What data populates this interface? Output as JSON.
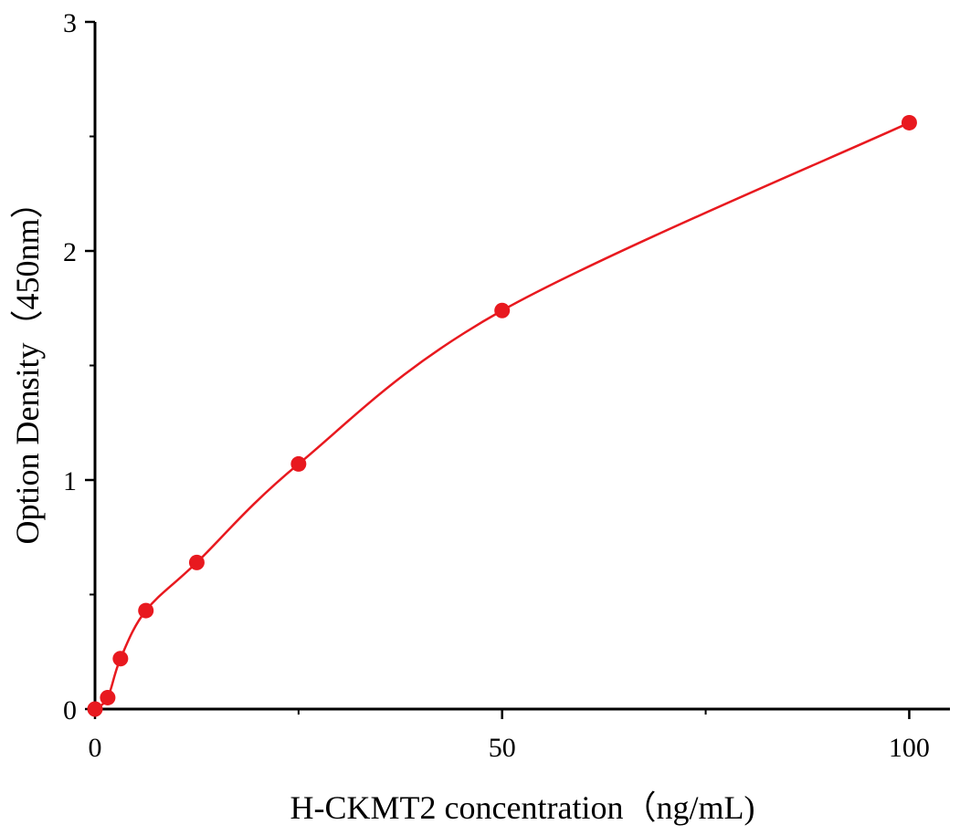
{
  "chart_data": {
    "type": "scatter",
    "title": "",
    "xlabel": "H-CKMT2 concentration（ng/mL)",
    "ylabel": "Option Density（450nm）",
    "xlim": [
      0,
      105
    ],
    "ylim": [
      0,
      3
    ],
    "x_ticks": [
      0,
      50,
      100
    ],
    "x_tick_labels": [
      "0",
      "50",
      "100"
    ],
    "x_minor_ticks": [
      25,
      75
    ],
    "y_ticks": [
      0,
      1,
      2,
      3
    ],
    "y_tick_labels": [
      "0",
      "1",
      "2",
      "3"
    ],
    "y_minor_ticks": [
      0.5,
      1.5,
      2.5
    ],
    "grid": false,
    "series": [
      {
        "x": [
          0,
          1.56,
          3.125,
          6.25,
          12.5,
          25,
          50,
          100
        ],
        "y": [
          0,
          0.05,
          0.22,
          0.43,
          0.64,
          1.07,
          1.74,
          2.56
        ],
        "marker": "circle",
        "fit_curve": true,
        "color": "#e8191f"
      }
    ]
  }
}
